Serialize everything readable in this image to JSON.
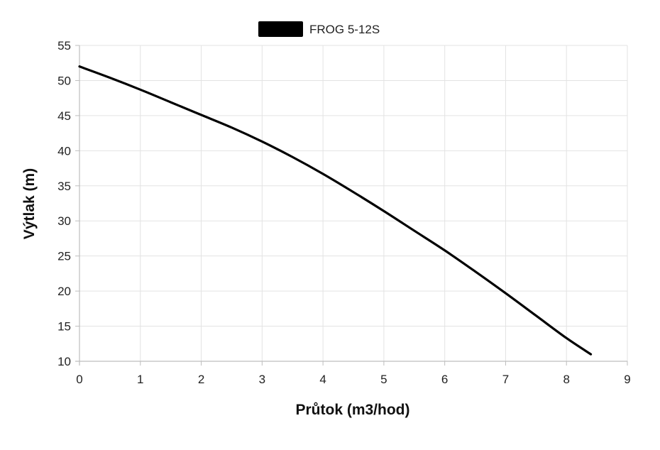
{
  "chart_data": {
    "type": "line",
    "title": "",
    "xlabel": "Průtok (m3/hod)",
    "ylabel": "Výtlak (m)",
    "xlim": [
      0,
      9
    ],
    "ylim": [
      10,
      55
    ],
    "xticks": [
      0,
      1,
      2,
      3,
      4,
      5,
      6,
      7,
      8,
      9
    ],
    "yticks": [
      10,
      15,
      20,
      25,
      30,
      35,
      40,
      45,
      50,
      55
    ],
    "grid": true,
    "legend_position": "top-center",
    "series": [
      {
        "name": "FROG 5-12S",
        "color": "#000000",
        "x": [
          0,
          0.5,
          1,
          1.5,
          2,
          2.5,
          3,
          3.5,
          4,
          4.5,
          5,
          5.5,
          6,
          6.5,
          7,
          7.5,
          8,
          8.4
        ],
        "y": [
          52,
          50.4,
          48.7,
          46.9,
          45.1,
          43.3,
          41.3,
          39.1,
          36.7,
          34.1,
          31.4,
          28.6,
          25.8,
          22.8,
          19.7,
          16.5,
          13.3,
          11
        ]
      }
    ]
  }
}
